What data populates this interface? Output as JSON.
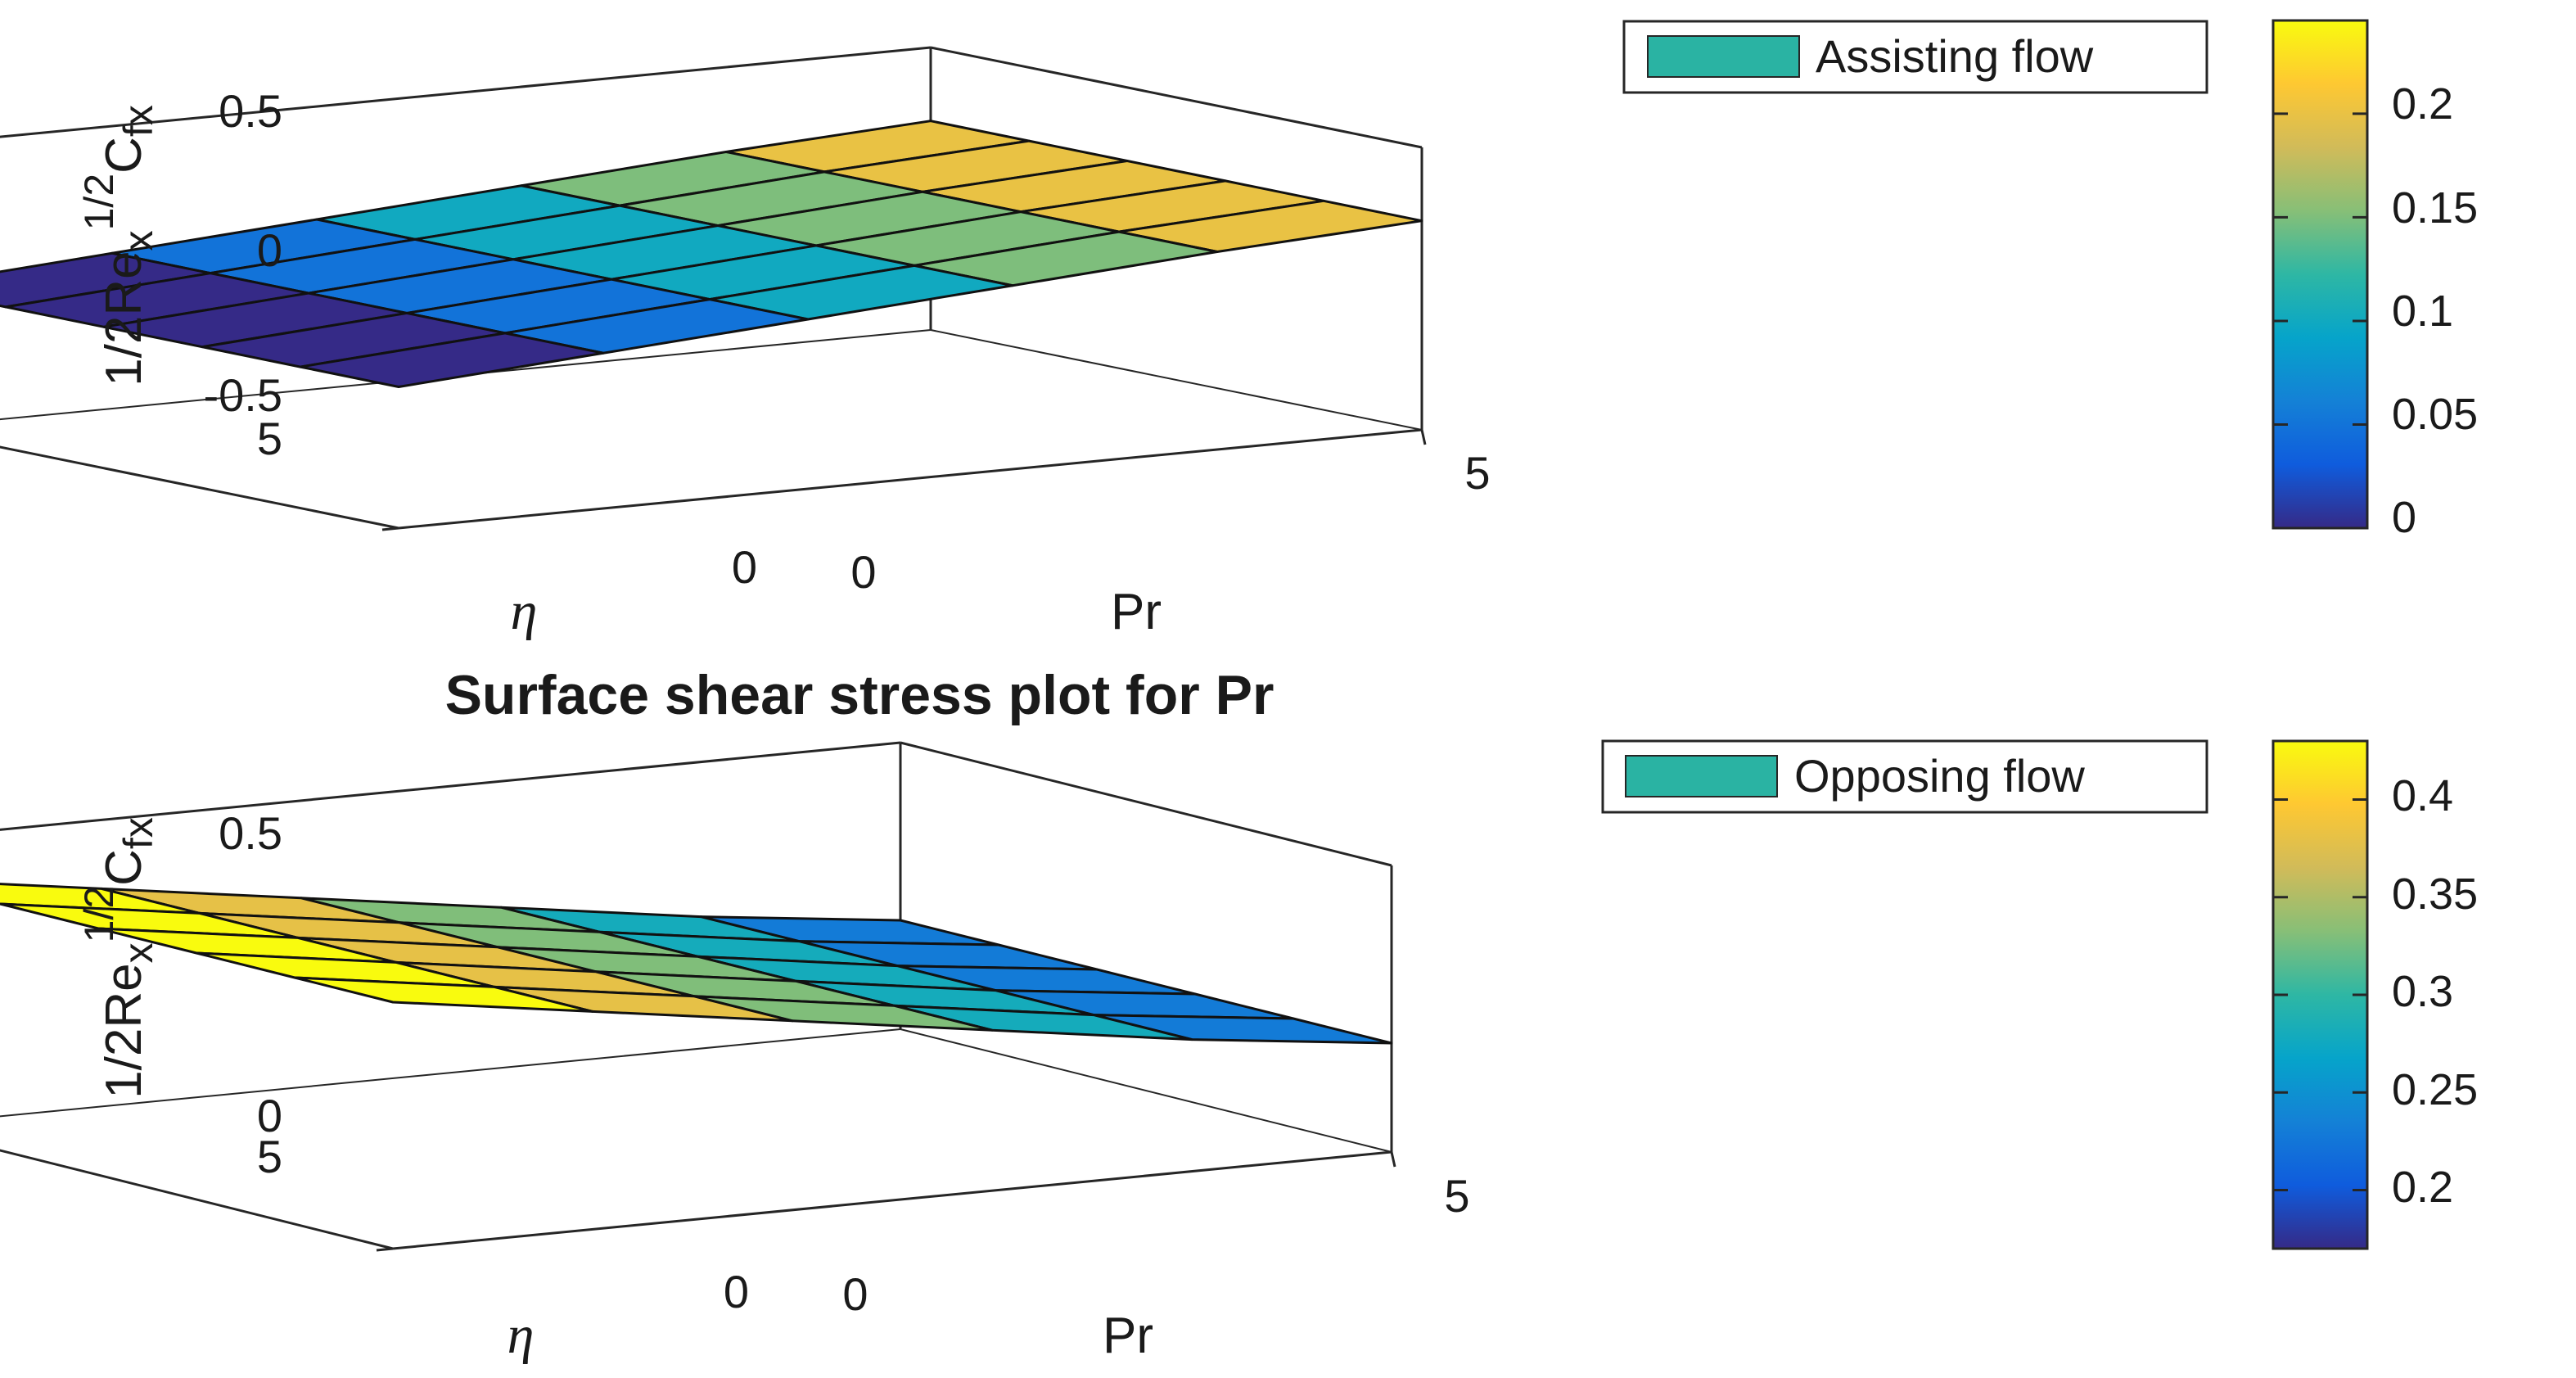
{
  "chart_data": [
    {
      "type": "surface",
      "title": "",
      "xlabel": "Pr",
      "ylabel": "η",
      "zlabel": {
        "base": "1/2Re",
        "sub": "x",
        "sup": "1/2",
        "tail": "C",
        "tail_sub": "fx"
      },
      "x_ticks": [
        "0",
        "5"
      ],
      "y_ticks": [
        "0",
        "5"
      ],
      "z_ticks": [
        "-0.5",
        "0",
        "0.5"
      ],
      "xlim": [
        0,
        5
      ],
      "ylim": [
        0,
        5
      ],
      "zlim": [
        -0.5,
        0.5
      ],
      "grid_x": [
        0,
        1,
        2,
        3,
        4,
        5
      ],
      "grid_y": [
        0,
        1,
        2,
        3,
        4,
        5
      ],
      "z_values": [
        [
          0,
          0.05,
          0.1,
          0.15,
          0.2,
          0.24
        ],
        [
          0,
          0.05,
          0.1,
          0.15,
          0.2,
          0.24
        ],
        [
          0,
          0.05,
          0.1,
          0.15,
          0.2,
          0.24
        ],
        [
          0,
          0.05,
          0.1,
          0.15,
          0.2,
          0.24
        ],
        [
          0,
          0.05,
          0.1,
          0.15,
          0.2,
          0.24
        ],
        [
          0,
          0.05,
          0.1,
          0.15,
          0.2,
          0.24
        ]
      ],
      "legend": "Assisting flow",
      "legend_color": "#2ab3a3",
      "colorbar": {
        "ticks": [
          "0",
          "0.05",
          "0.1",
          "0.15",
          "0.2"
        ],
        "tick_values": [
          0,
          0.05,
          0.1,
          0.15,
          0.2
        ],
        "range": [
          0,
          0.245
        ]
      }
    },
    {
      "type": "surface",
      "title": "Surface shear stress plot for Pr",
      "xlabel": "Pr",
      "ylabel": "η",
      "zlabel": {
        "base": "1/2Re",
        "sub": "x",
        "sup": "1/2",
        "tail": "C",
        "tail_sub": "fx"
      },
      "x_ticks": [
        "0",
        "5"
      ],
      "y_ticks": [
        "0",
        "5"
      ],
      "z_ticks": [
        "0",
        "0.5"
      ],
      "xlim": [
        0,
        5
      ],
      "ylim": [
        0,
        5
      ],
      "zlim": [
        0,
        0.5
      ],
      "grid_x": [
        0,
        1,
        2,
        3,
        4,
        5
      ],
      "grid_y": [
        0,
        1,
        2,
        3,
        4,
        5
      ],
      "z_values": [
        [
          0.43,
          0.38,
          0.33,
          0.28,
          0.23,
          0.19
        ],
        [
          0.43,
          0.38,
          0.33,
          0.28,
          0.23,
          0.19
        ],
        [
          0.43,
          0.38,
          0.33,
          0.28,
          0.23,
          0.19
        ],
        [
          0.43,
          0.38,
          0.33,
          0.28,
          0.23,
          0.19
        ],
        [
          0.43,
          0.38,
          0.33,
          0.28,
          0.23,
          0.19
        ],
        [
          0.43,
          0.38,
          0.33,
          0.28,
          0.23,
          0.19
        ]
      ],
      "legend": "Opposing flow",
      "legend_color": "#2ab3a3",
      "colorbar": {
        "ticks": [
          "0.2",
          "0.25",
          "0.3",
          "0.35",
          "0.4"
        ],
        "tick_values": [
          0.2,
          0.25,
          0.3,
          0.35,
          0.4
        ],
        "range": [
          0.17,
          0.43
        ]
      }
    }
  ],
  "colormap": [
    "#352a87",
    "#0f5cdd",
    "#1481d6",
    "#06a4ca",
    "#2eb7a4",
    "#87bf77",
    "#d1bb59",
    "#fec832",
    "#f9fb0e"
  ]
}
